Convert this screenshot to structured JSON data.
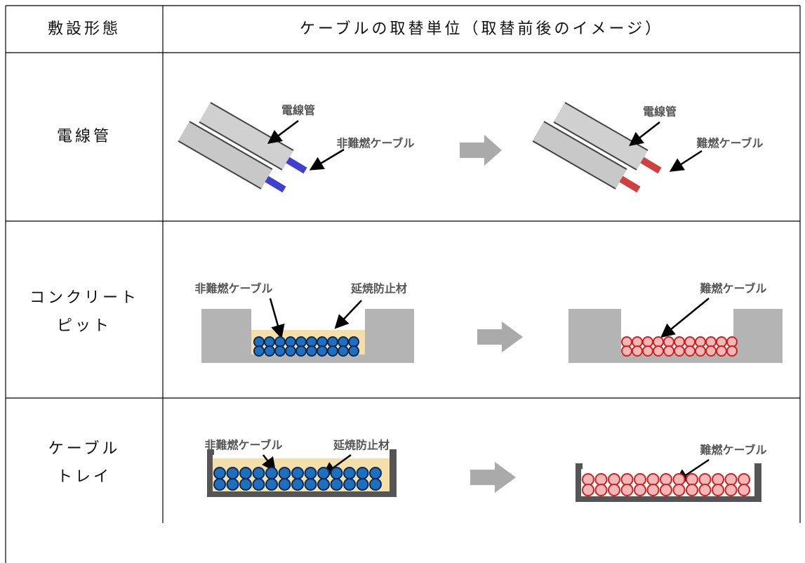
{
  "header": {
    "installation": "敷設形態",
    "replacement": "ケーブルの取替単位（取替前後のイメージ）"
  },
  "rows": [
    {
      "installation": [
        "電線管"
      ],
      "before": {
        "conduit": "電線管",
        "cable": "非難燃ケーブル"
      },
      "after": {
        "conduit": "電線管",
        "cable": "難燃ケーブル"
      }
    },
    {
      "installation": [
        "コンクリート",
        "ピット"
      ],
      "before": {
        "cable": "非難燃ケーブル",
        "barrier": "延焼防止材"
      },
      "after": {
        "cable": "難燃ケーブル"
      }
    },
    {
      "installation": [
        "ケーブル",
        "トレイ"
      ],
      "before": {
        "cable": "非難燃ケーブル",
        "barrier": "延焼防止材"
      },
      "after": {
        "cable": "難燃ケーブル"
      }
    }
  ]
}
